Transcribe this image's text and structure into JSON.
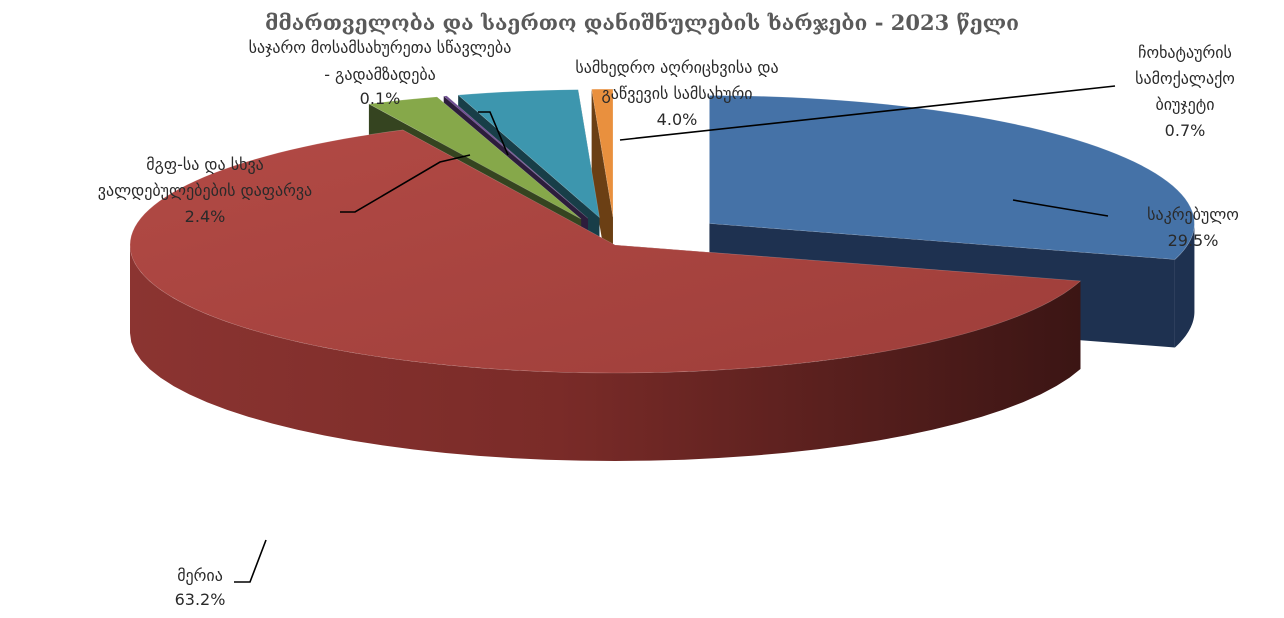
{
  "chart_data": {
    "type": "pie",
    "title": "მმართველობა და საერთო დანიშნულების ხარჯები - 2023 წელი",
    "slices": [
      {
        "name": "საკრებულო",
        "value": 29.5,
        "value_label": "29.5%",
        "label_lines": [
          "საკრებულო"
        ],
        "color": "#4572A7",
        "dark": "#1E3150"
      },
      {
        "name": "მერია",
        "value": 63.2,
        "value_label": "63.2%",
        "label_lines": [
          "მერია"
        ],
        "color": "#A8433F",
        "dark": "#4A1C1A"
      },
      {
        "name": "მგფ-სა და სხვა ვალდებულებების დაფარვა",
        "value": 2.4,
        "value_label": "2.4%",
        "label_lines": [
          "მგფ-სა და სხვა",
          "ვალდებულებების დაფარვა"
        ],
        "color": "#86A84A",
        "dark": "#354420"
      },
      {
        "name": "საჯარო მოსამსახურეთა სწავლება - გადამზადება",
        "value": 0.1,
        "value_label": "0.1%",
        "label_lines": [
          "საჯარო მოსამსახურეთა სწავლება",
          "- გადამზადება"
        ],
        "color": "#6E4C92",
        "dark": "#2C1D3C"
      },
      {
        "name": "სამხედრო აღრიცხვისა და გაწვევის სამსახური",
        "value": 4.0,
        "value_label": "4.0%",
        "label_lines": [
          "სამხედრო აღრიცხვისა და",
          "გაწვევის სამსახური"
        ],
        "color": "#3D96AE",
        "dark": "#183E48"
      },
      {
        "name": "ჩოხატაურის სამოქალაქო ბიუჯეტი",
        "value": 0.7,
        "value_label": "0.7%",
        "label_lines": [
          "ჩოხატაურის",
          "სამოქალაქო",
          "ბიუჯეტი"
        ],
        "color": "#E9903E",
        "dark": "#6B3F14"
      }
    ],
    "legend": "none",
    "style": "3d-exploded-pie"
  }
}
